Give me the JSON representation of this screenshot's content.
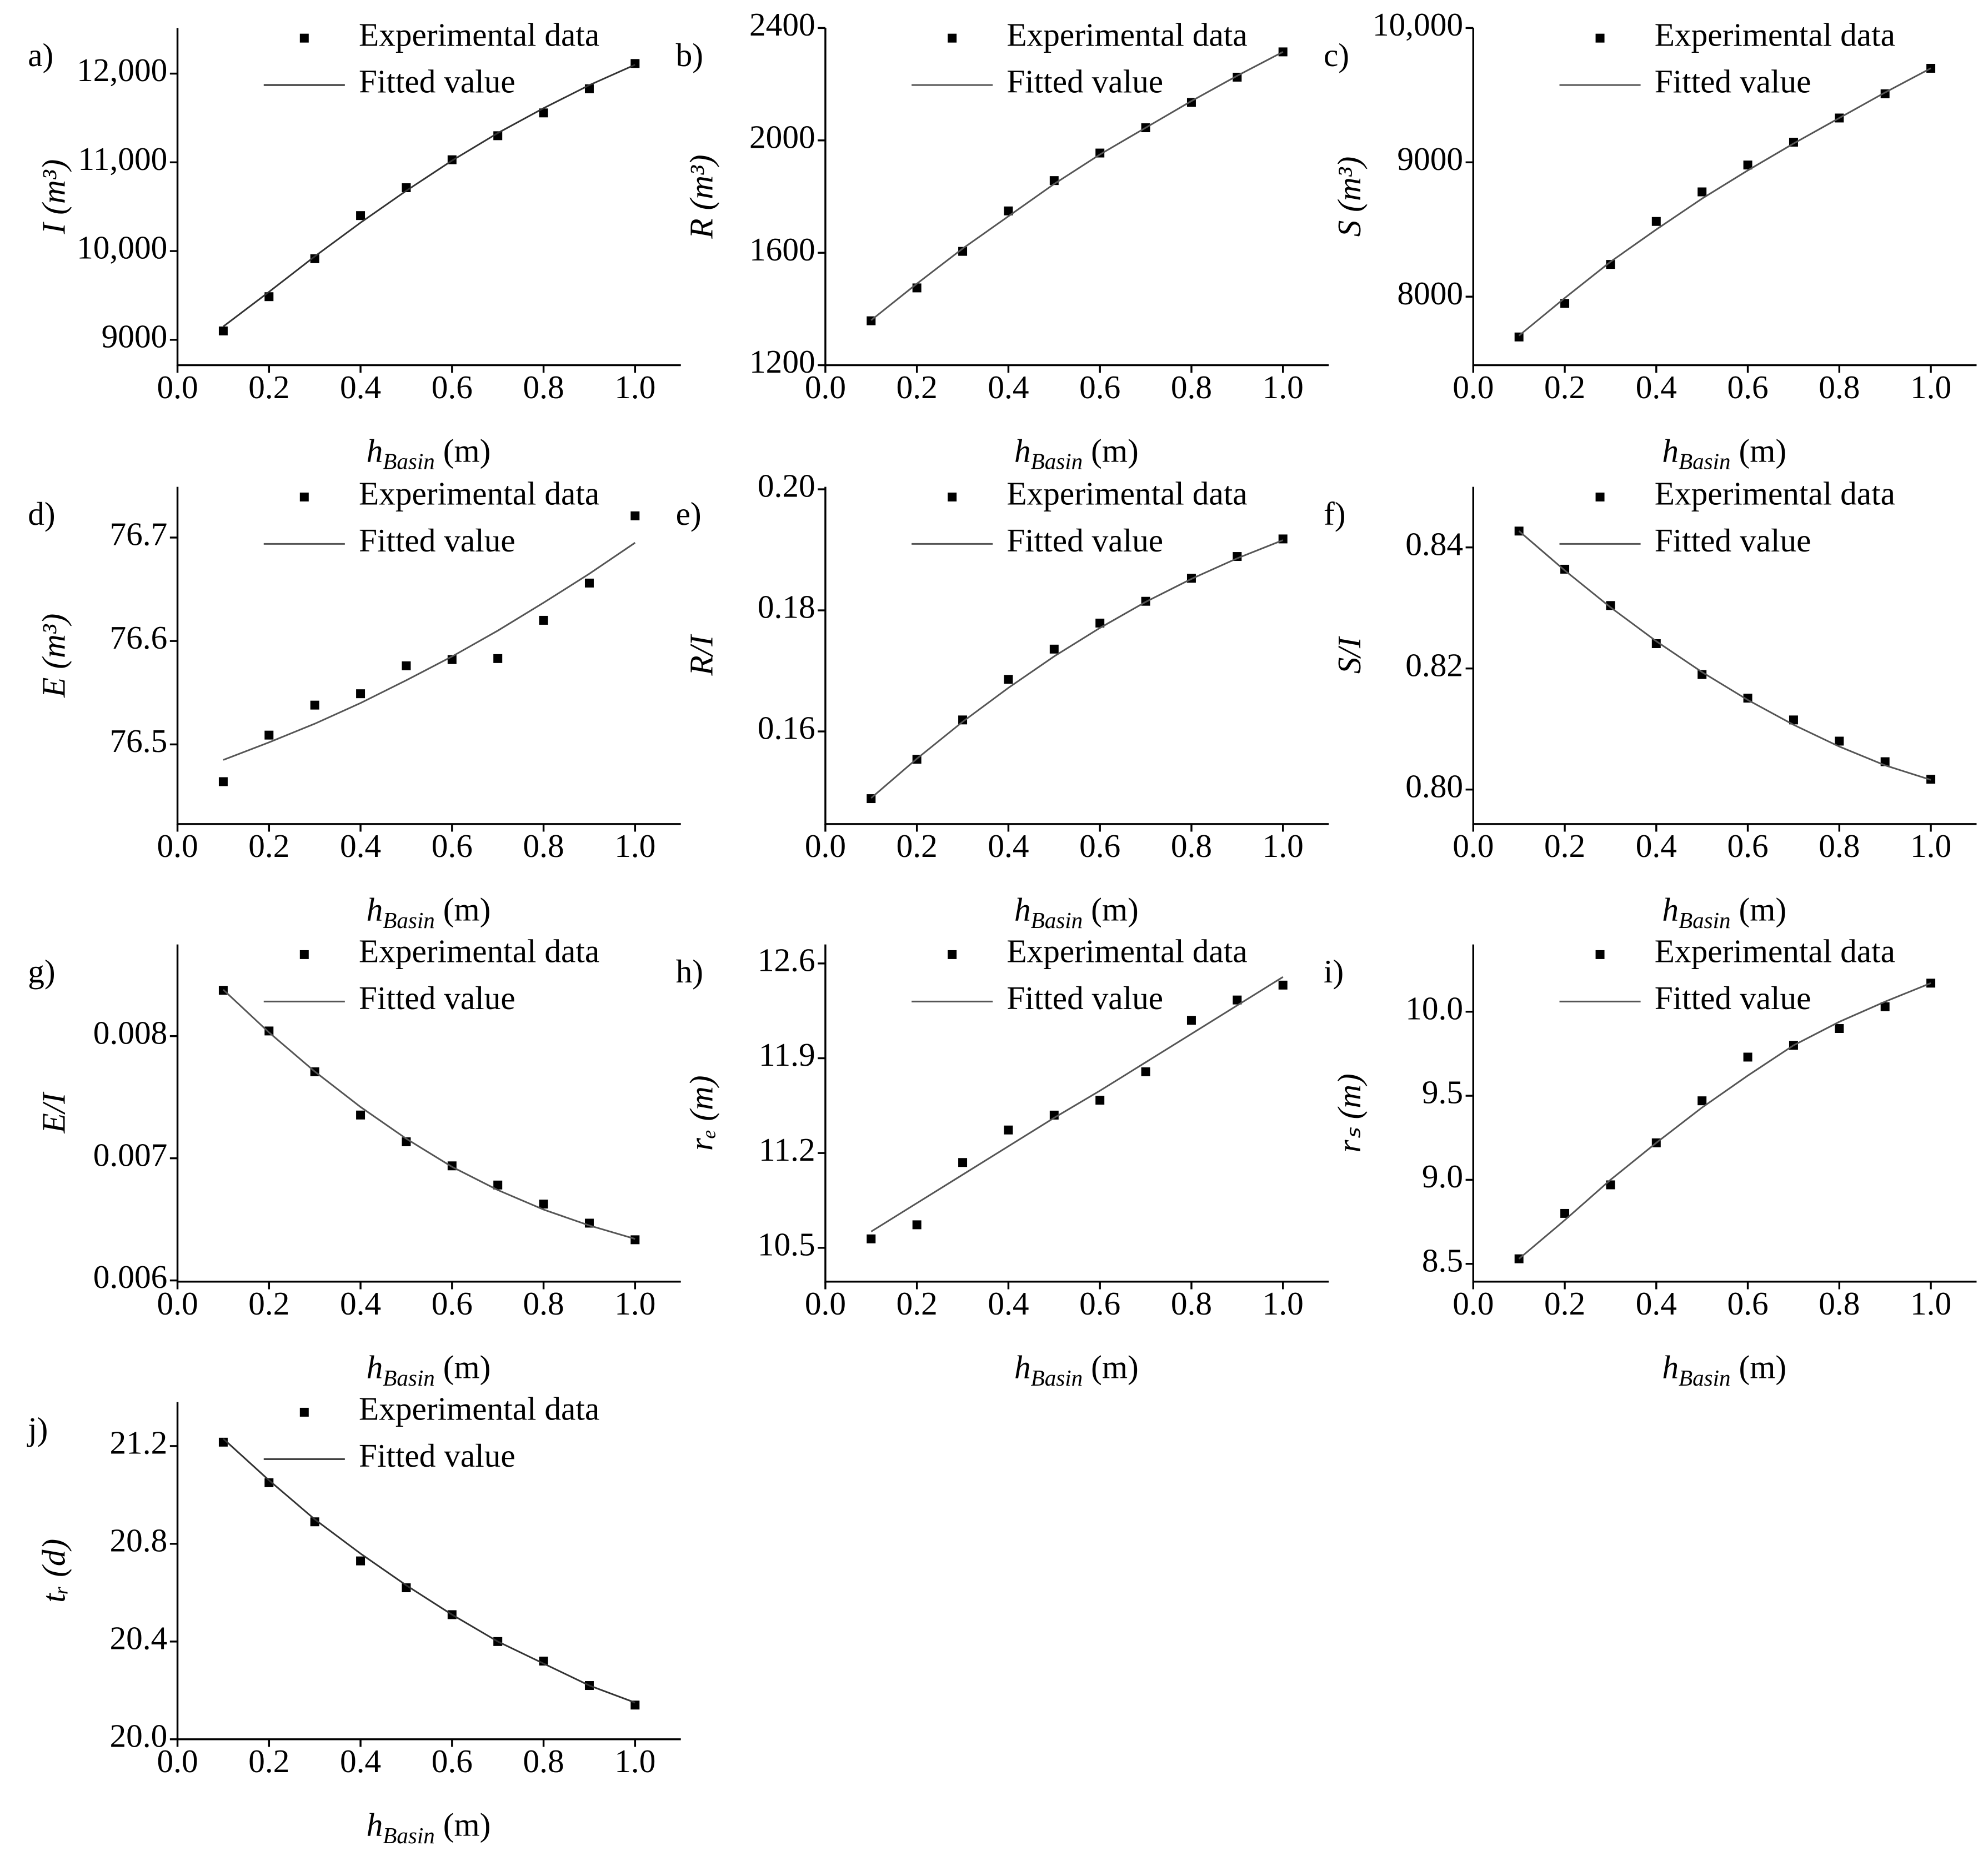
{
  "chart_data": [
    {
      "type": "scatter",
      "panel_label": "a)",
      "x_label": [
        "h",
        "Basin",
        " (m)"
      ],
      "y_label": "I (m³)",
      "x": [
        0.1,
        0.2,
        0.3,
        0.4,
        0.5,
        0.6,
        0.7,
        0.8,
        0.9,
        1.0
      ],
      "xlim": [
        0,
        1.1
      ],
      "xticks": [
        {
          "value": 0,
          "label": "0.0"
        },
        0.2,
        0.4,
        0.6,
        0.8,
        {
          "value": 1,
          "label": "1.0"
        }
      ],
      "ylim": [
        8714,
        12514
      ],
      "yticks": [
        9000,
        {
          "value": 10000,
          "label": "10,000"
        },
        {
          "value": 11000,
          "label": "11,000"
        },
        {
          "value": 12000,
          "label": "12,000"
        }
      ],
      "series": [
        {
          "name": "Experimental data",
          "style": "marker",
          "color": "#000000",
          "values": [
            9100,
            9486,
            9914,
            10400,
            10714,
            11029,
            11300,
            11557,
            11829,
            12114
          ]
        },
        {
          "name": "Fitted value",
          "style": "line",
          "color": "#333333",
          "values": [
            9150,
            9540,
            9940,
            10320,
            10680,
            11020,
            11330,
            11610,
            11870,
            12100
          ]
        }
      ]
    },
    {
      "type": "scatter",
      "panel_label": "b)",
      "x_label": [
        "h",
        "Basin",
        " (m)"
      ],
      "y_label": "R (m³)",
      "x": [
        0.1,
        0.2,
        0.3,
        0.4,
        0.5,
        0.6,
        0.7,
        0.8,
        0.9,
        1.0
      ],
      "xlim": [
        0,
        1.1
      ],
      "xticks": [
        {
          "value": 0,
          "label": "0.0"
        },
        0.2,
        0.4,
        0.6,
        0.8,
        {
          "value": 1,
          "label": "1.0"
        }
      ],
      "ylim": [
        1200,
        2400
      ],
      "yticks": [
        1200,
        1600,
        2000,
        2400
      ],
      "series": [
        {
          "name": "Experimental data",
          "style": "marker",
          "color": "#000000",
          "values": [
            1358,
            1475,
            1605,
            1749,
            1857,
            1955,
            2045,
            2135,
            2225,
            2315
          ]
        },
        {
          "name": "Fitted value",
          "style": "line",
          "color": "#555555",
          "values": [
            1360,
            1490,
            1615,
            1730,
            1845,
            1950,
            2045,
            2140,
            2230,
            2315
          ]
        }
      ]
    },
    {
      "type": "scatter",
      "panel_label": "c)",
      "x_label": [
        "h",
        "Basin",
        " (m)"
      ],
      "y_label": "S (m³)",
      "x": [
        0.1,
        0.2,
        0.3,
        0.4,
        0.5,
        0.6,
        0.7,
        0.8,
        0.9,
        1.0
      ],
      "xlim": [
        0,
        1.1
      ],
      "xticks": [
        {
          "value": 0,
          "label": "0.0"
        },
        0.2,
        0.4,
        0.6,
        0.8,
        {
          "value": 1,
          "label": "1.0"
        }
      ],
      "ylim": [
        7490,
        10000
      ],
      "yticks": [
        8000,
        9000,
        {
          "value": 10000,
          "label": "10,000"
        }
      ],
      "series": [
        {
          "name": "Experimental data",
          "style": "marker",
          "color": "#000000",
          "values": [
            7700,
            7950,
            8240,
            8560,
            8780,
            8980,
            9150,
            9330,
            9510,
            9700
          ]
        },
        {
          "name": "Fitted value",
          "style": "line",
          "color": "#555555",
          "values": [
            7710,
            7990,
            8260,
            8500,
            8730,
            8940,
            9140,
            9330,
            9520,
            9700
          ]
        }
      ]
    },
    {
      "type": "scatter",
      "panel_label": "d)",
      "x_label": [
        "h",
        "Basin",
        " (m)"
      ],
      "y_label": "E (m³)",
      "x": [
        0.1,
        0.2,
        0.3,
        0.4,
        0.5,
        0.6,
        0.7,
        0.8,
        0.9,
        1.0
      ],
      "xlim": [
        0,
        1.1
      ],
      "xticks": [
        {
          "value": 0,
          "label": "0.0"
        },
        0.2,
        0.4,
        0.6,
        0.8,
        {
          "value": 1,
          "label": "1.0"
        }
      ],
      "ylim": [
        76.423,
        76.749
      ],
      "yticks": [
        76.5,
        76.6,
        76.7
      ],
      "series": [
        {
          "name": "Experimental data",
          "style": "marker",
          "color": "#000000",
          "values": [
            76.464,
            76.509,
            76.538,
            76.549,
            76.576,
            76.582,
            76.583,
            76.62,
            76.656,
            76.721
          ]
        },
        {
          "name": "Fitted value",
          "style": "line",
          "color": "#555555",
          "values": [
            76.485,
            76.502,
            76.52,
            76.54,
            76.562,
            76.585,
            76.61,
            76.637,
            76.665,
            76.695
          ]
        }
      ]
    },
    {
      "type": "scatter",
      "panel_label": "e)",
      "x_label": [
        "h",
        "Basin",
        " (m)"
      ],
      "y_label": "R/I",
      "x": [
        0.1,
        0.2,
        0.3,
        0.4,
        0.5,
        0.6,
        0.7,
        0.8,
        0.9,
        1.0
      ],
      "xlim": [
        0,
        1.1
      ],
      "xticks": [
        {
          "value": 0,
          "label": "0.0"
        },
        0.2,
        0.4,
        0.6,
        0.8,
        {
          "value": 1,
          "label": "1.0"
        }
      ],
      "ylim": [
        0.1447,
        0.2004
      ],
      "yticks": [
        0.16,
        0.18,
        {
          "value": 0.2,
          "label": "0.20"
        }
      ],
      "series": [
        {
          "name": "Experimental data",
          "style": "marker",
          "color": "#000000",
          "values": [
            0.1489,
            0.1554,
            0.1619,
            0.1686,
            0.1736,
            0.1779,
            0.1815,
            0.1853,
            0.1889,
            0.1918
          ]
        },
        {
          "name": "Fitted value",
          "style": "line",
          "color": "#555555",
          "values": [
            0.149,
            0.1555,
            0.1616,
            0.1672,
            0.1724,
            0.1771,
            0.1814,
            0.1852,
            0.1886,
            0.1916
          ]
        }
      ]
    },
    {
      "type": "scatter",
      "panel_label": "f)",
      "x_label": [
        "h",
        "Basin",
        " (m)"
      ],
      "y_label": "S/I",
      "x": [
        0.1,
        0.2,
        0.3,
        0.4,
        0.5,
        0.6,
        0.7,
        0.8,
        0.9,
        1.0
      ],
      "xlim": [
        0,
        1.1
      ],
      "xticks": [
        {
          "value": 0,
          "label": "0.0"
        },
        0.2,
        0.4,
        0.6,
        0.8,
        {
          "value": 1,
          "label": "1.0"
        }
      ],
      "ylim": [
        0.7943,
        0.85
      ],
      "yticks": [
        {
          "value": 0.8,
          "label": "0.80"
        },
        0.82,
        0.84
      ],
      "series": [
        {
          "name": "Experimental data",
          "style": "marker",
          "color": "#000000",
          "values": [
            0.8427,
            0.8364,
            0.8304,
            0.8241,
            0.819,
            0.8151,
            0.8115,
            0.808,
            0.8046,
            0.8017
          ]
        },
        {
          "name": "Fitted value",
          "style": "line",
          "color": "#555555",
          "values": [
            0.8427,
            0.8362,
            0.8301,
            0.8245,
            0.8194,
            0.8148,
            0.8107,
            0.8071,
            0.804,
            0.8016
          ]
        }
      ]
    },
    {
      "type": "scatter",
      "panel_label": "g)",
      "x_label": [
        "h",
        "Basin",
        " (m)"
      ],
      "y_label": "E/I",
      "x": [
        0.1,
        0.2,
        0.3,
        0.4,
        0.5,
        0.6,
        0.7,
        0.8,
        0.9,
        1.0
      ],
      "xlim": [
        0,
        1.1
      ],
      "xticks": [
        {
          "value": 0,
          "label": "0.0"
        },
        0.2,
        0.4,
        0.6,
        0.8,
        {
          "value": 1,
          "label": "1.0"
        }
      ],
      "ylim": [
        0.00599,
        0.00875
      ],
      "yticks": [
        0.006,
        0.007,
        0.008
      ],
      "series": [
        {
          "name": "Experimental data",
          "style": "marker",
          "color": "#000000",
          "values": [
            0.008375,
            0.008042,
            0.007708,
            0.007354,
            0.007135,
            0.006938,
            0.006781,
            0.006625,
            0.006469,
            0.006333
          ]
        },
        {
          "name": "Fitted value",
          "style": "line",
          "color": "#555555",
          "values": [
            0.00838,
            0.00803,
            0.00771,
            0.00742,
            0.00716,
            0.00693,
            0.00674,
            0.00658,
            0.00645,
            0.00634
          ]
        }
      ]
    },
    {
      "type": "scatter",
      "panel_label": "h)",
      "x_label": [
        "h",
        "Basin",
        " (m)"
      ],
      "y_label": "rₑ (m)",
      "x": [
        0.1,
        0.2,
        0.3,
        0.4,
        0.5,
        0.6,
        0.7,
        0.8,
        0.9,
        1.0
      ],
      "xlim": [
        0,
        1.1
      ],
      "xticks": [
        {
          "value": 0,
          "label": "0.0"
        },
        0.2,
        0.4,
        0.6,
        0.8,
        {
          "value": 1,
          "label": "1.0"
        }
      ],
      "ylim": [
        10.25,
        12.74
      ],
      "yticks": [
        10.5,
        11.2,
        11.9,
        12.6
      ],
      "series": [
        {
          "name": "Experimental data",
          "style": "marker",
          "color": "#000000",
          "values": [
            10.566,
            10.67,
            11.13,
            11.37,
            11.48,
            11.59,
            11.8,
            12.18,
            12.33,
            12.44
          ]
        },
        {
          "name": "Fitted value",
          "style": "line",
          "color": "#555555",
          "values": [
            10.62,
            10.83,
            11.04,
            11.25,
            11.46,
            11.66,
            11.87,
            12.08,
            12.29,
            12.5
          ]
        }
      ]
    },
    {
      "type": "scatter",
      "panel_label": "i)",
      "x_label": [
        "h",
        "Basin",
        " (m)"
      ],
      "y_label": "rₛ (m)",
      "x": [
        0.1,
        0.2,
        0.3,
        0.4,
        0.5,
        0.6,
        0.7,
        0.8,
        0.9,
        1.0
      ],
      "xlim": [
        0,
        1.1
      ],
      "xticks": [
        {
          "value": 0,
          "label": "0.0"
        },
        0.2,
        0.4,
        0.6,
        0.8,
        {
          "value": 1,
          "label": "1.0"
        }
      ],
      "ylim": [
        8.394,
        10.4
      ],
      "yticks": [
        8.5,
        {
          "value": 9,
          "label": "9.0"
        },
        9.5,
        {
          "value": 10,
          "label": "10.0"
        }
      ],
      "series": [
        {
          "name": "Experimental data",
          "style": "marker",
          "color": "#000000",
          "values": [
            8.53,
            8.8,
            8.97,
            9.22,
            9.47,
            9.73,
            9.8,
            9.9,
            10.03,
            10.17
          ]
        },
        {
          "name": "Fitted value",
          "style": "line",
          "color": "#555555",
          "values": [
            8.53,
            8.76,
            9.0,
            9.22,
            9.43,
            9.62,
            9.8,
            9.94,
            10.06,
            10.17
          ]
        }
      ]
    },
    {
      "type": "scatter",
      "panel_label": "j)",
      "x_label": [
        "h",
        "Basin",
        " (m)"
      ],
      "y_label": "tᵣ (d)",
      "x": [
        0.1,
        0.2,
        0.3,
        0.4,
        0.5,
        0.6,
        0.7,
        0.8,
        0.9,
        1.0
      ],
      "xlim": [
        0,
        1.1
      ],
      "xticks": [
        {
          "value": 0,
          "label": "0.0"
        },
        0.2,
        0.4,
        0.6,
        0.8,
        {
          "value": 1,
          "label": "1.0"
        }
      ],
      "ylim": [
        20.0,
        21.38
      ],
      "yticks": [
        {
          "value": 20,
          "label": "20.0"
        },
        20.4,
        20.8,
        21.2
      ],
      "series": [
        {
          "name": "Experimental data",
          "style": "marker",
          "color": "#000000",
          "values": [
            21.216,
            21.05,
            20.89,
            20.73,
            20.62,
            20.51,
            20.4,
            20.32,
            20.22,
            20.14
          ]
        },
        {
          "name": "Fitted value",
          "style": "line",
          "color": "#333333",
          "values": [
            21.23,
            21.06,
            20.9,
            20.76,
            20.63,
            20.51,
            20.4,
            20.31,
            20.22,
            20.15
          ]
        }
      ]
    }
  ]
}
